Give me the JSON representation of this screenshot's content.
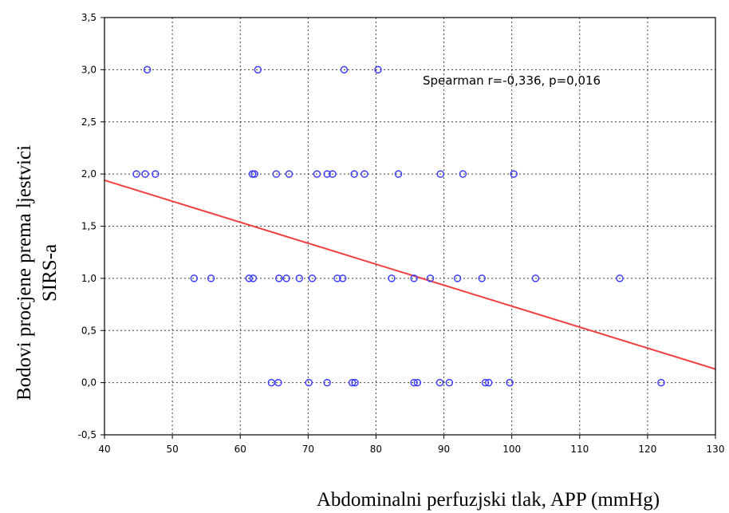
{
  "chart_data": {
    "type": "scatter",
    "title": "",
    "xlabel": "Abdominalni perfuzjski tlak, APP (mmHg)",
    "ylabel_lines": [
      "Bodovi procjene prema ljestvici",
      "SIRS-a"
    ],
    "xlim": [
      40,
      130
    ],
    "ylim": [
      -0.5,
      3.5
    ],
    "x_ticks": [
      40,
      50,
      60,
      70,
      80,
      90,
      100,
      110,
      120,
      130
    ],
    "x_tick_labels": [
      "40",
      "50",
      "60",
      "70",
      "80",
      "90",
      "100",
      "110",
      "120",
      "130"
    ],
    "y_ticks": [
      -0.5,
      0,
      0.5,
      1,
      1.5,
      2,
      2.5,
      3,
      3.5
    ],
    "y_tick_labels": [
      "-0,5",
      "0,0",
      "0,5",
      "1,0",
      "1,5",
      "2,0",
      "2,5",
      "3,0",
      "3,5"
    ],
    "grid": true,
    "annotation": "Spearman r=-0,336, p=0,016",
    "colors": {
      "points": "#3a3aff",
      "fit_line": "#f04040"
    },
    "series": [
      {
        "points": [
          [
            46.3,
            3.0
          ],
          [
            62.6,
            3.0
          ],
          [
            75.3,
            3.0
          ],
          [
            80.3,
            3.0
          ],
          [
            44.7,
            2.0
          ],
          [
            46.0,
            2.0
          ],
          [
            47.5,
            2.0
          ],
          [
            61.8,
            2.0
          ],
          [
            62.1,
            2.0
          ],
          [
            65.3,
            2.0
          ],
          [
            67.2,
            2.0
          ],
          [
            71.3,
            2.0
          ],
          [
            72.8,
            2.0
          ],
          [
            73.6,
            2.0
          ],
          [
            76.8,
            2.0
          ],
          [
            78.3,
            2.0
          ],
          [
            83.3,
            2.0
          ],
          [
            89.5,
            2.0
          ],
          [
            92.8,
            2.0
          ],
          [
            100.3,
            2.0
          ],
          [
            53.2,
            1.0
          ],
          [
            55.7,
            1.0
          ],
          [
            61.3,
            1.0
          ],
          [
            61.9,
            1.0
          ],
          [
            65.7,
            1.0
          ],
          [
            66.8,
            1.0
          ],
          [
            68.7,
            1.0
          ],
          [
            70.6,
            1.0
          ],
          [
            74.3,
            1.0
          ],
          [
            75.1,
            1.0
          ],
          [
            82.3,
            1.0
          ],
          [
            85.6,
            1.0
          ],
          [
            88.0,
            1.0
          ],
          [
            92.0,
            1.0
          ],
          [
            95.6,
            1.0
          ],
          [
            103.5,
            1.0
          ],
          [
            115.9,
            1.0
          ],
          [
            64.6,
            0.0
          ],
          [
            65.6,
            0.0
          ],
          [
            70.1,
            0.0
          ],
          [
            72.8,
            0.0
          ],
          [
            76.5,
            0.0
          ],
          [
            76.9,
            0.0
          ],
          [
            85.6,
            0.0
          ],
          [
            86.1,
            0.0
          ],
          [
            89.4,
            0.0
          ],
          [
            90.8,
            0.0
          ],
          [
            96.1,
            0.0
          ],
          [
            96.6,
            0.0
          ],
          [
            99.7,
            0.0
          ],
          [
            122.0,
            0.0
          ]
        ]
      }
    ],
    "fit_line": {
      "x": [
        40,
        130
      ],
      "y": [
        1.94,
        0.13
      ]
    }
  }
}
